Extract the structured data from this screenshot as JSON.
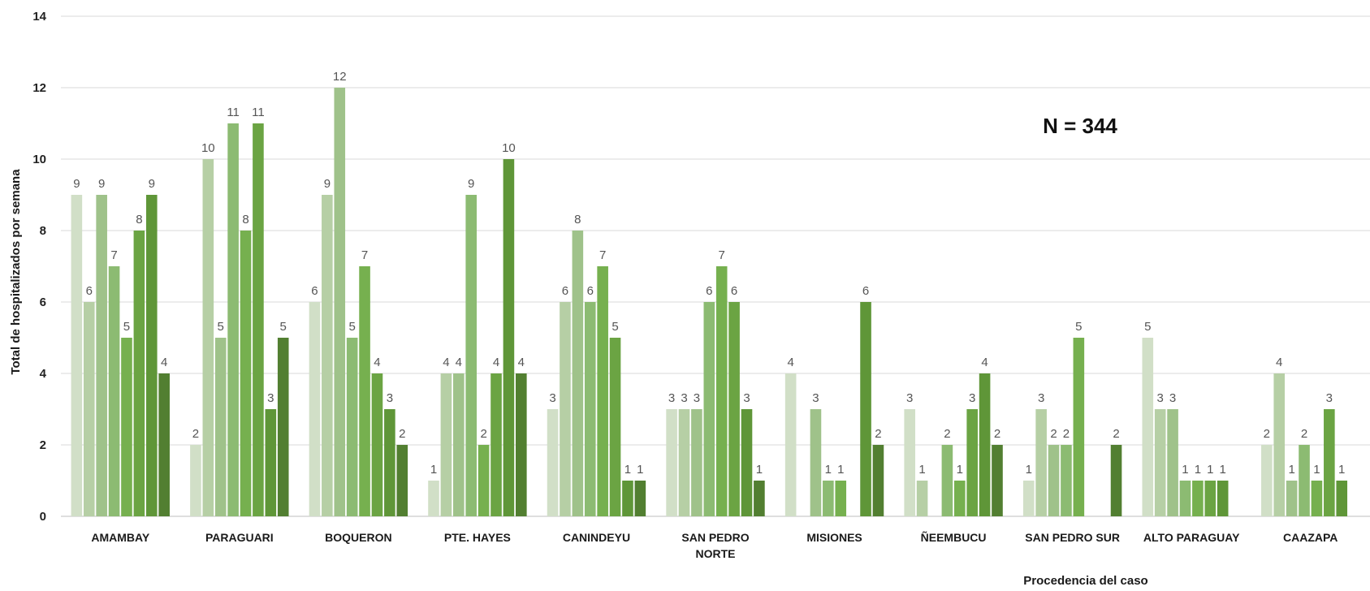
{
  "chart_data": {
    "type": "bar",
    "title": "",
    "ylabel": "Total de hospitalizados por semana",
    "xlabel": "Procedencia del caso",
    "annotation": "N = 344",
    "ylim": [
      0,
      14
    ],
    "yticks": [
      0,
      2,
      4,
      6,
      8,
      10,
      12,
      14
    ],
    "grid": true,
    "legend": "none",
    "categories": [
      [
        "AMAMBAY"
      ],
      [
        "PARAGUARI"
      ],
      [
        "BOQUERON"
      ],
      [
        "PTE. HAYES"
      ],
      [
        "CANINDEYU"
      ],
      [
        "SAN PEDRO",
        "NORTE"
      ],
      [
        "MISIONES"
      ],
      [
        "ÑEEMBUCU"
      ],
      [
        "SAN PEDRO SUR"
      ],
      [
        "ALTO PARAGUAY"
      ],
      [
        "CAAZAPA"
      ]
    ],
    "series_colors": [
      "#d1dfc7",
      "#b6cfa5",
      "#9fc28a",
      "#8cbb72",
      "#76b04f",
      "#6ba443",
      "#5f9638",
      "#527f31"
    ],
    "values": [
      [
        9,
        6,
        9,
        7,
        5,
        8,
        9,
        4
      ],
      [
        2,
        10,
        5,
        11,
        8,
        11,
        3,
        5
      ],
      [
        6,
        9,
        12,
        5,
        7,
        4,
        3,
        2
      ],
      [
        1,
        4,
        4,
        9,
        2,
        4,
        10,
        4
      ],
      [
        3,
        6,
        8,
        6,
        7,
        5,
        1,
        1
      ],
      [
        3,
        3,
        3,
        6,
        7,
        6,
        3,
        1
      ],
      [
        4,
        0,
        3,
        1,
        1,
        0,
        6,
        2
      ],
      [
        3,
        1,
        0,
        2,
        1,
        3,
        4,
        2
      ],
      [
        1,
        3,
        2,
        2,
        5,
        0,
        0,
        2
      ],
      [
        5,
        3,
        3,
        1,
        1,
        1,
        1,
        0
      ],
      [
        2,
        4,
        1,
        2,
        1,
        3,
        1,
        0
      ]
    ]
  }
}
